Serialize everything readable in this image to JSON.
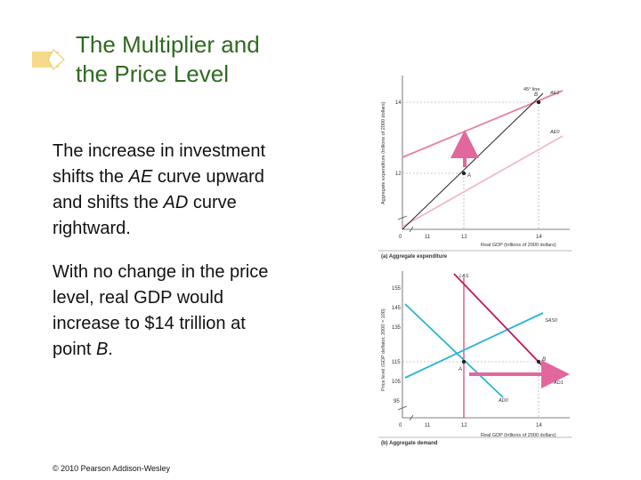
{
  "title": {
    "line1": "The Multiplier and",
    "line2": "the Price Level"
  },
  "body": {
    "p1": [
      {
        "text": "The increase in investment"
      },
      {
        "text": "shifts the "
      },
      {
        "text": "AE"
      },
      {
        "text": " curve upward"
      },
      {
        "text": "and shifts the "
      },
      {
        "text": "AD"
      },
      {
        "text": " curve"
      },
      {
        "text": "rightward."
      }
    ],
    "p2": [
      {
        "text": "With no change in the price"
      },
      {
        "text": "level, real GDP would"
      },
      {
        "text": "increase to $14 trillion at"
      },
      {
        "text": "point "
      },
      {
        "text": "B"
      },
      {
        "text": "."
      }
    ]
  },
  "copyright": "© 2010 Pearson Addison-Wesley",
  "colors": {
    "title": "#2e6b1f",
    "ae_original": "#f2b8c6",
    "ae_new": "#e7829c",
    "arrow": "#e1679d",
    "magenta": "#c2185b",
    "blue": "#2bb3d9",
    "deco": "#f6d98a"
  },
  "top_panel": {
    "ylabel": "Aggregate expenditure (trillions of 2000 dollars)",
    "xlabel": "Real GDP (trillions of 2000 dollars)",
    "caption": "(a) Aggregate expenditure",
    "y_ticks": [
      "14",
      "12",
      "0"
    ],
    "x_ticks": [
      "11",
      "12",
      "14"
    ],
    "line45_label": "45° line",
    "ae1_label": "AE1",
    "ae0_label": "AE0",
    "point_a": "A",
    "point_b": "B"
  },
  "bottom_panel": {
    "ylabel": "Price level (GDP deflator, 2000 = 100)",
    "xlabel": "Real GDP (trillions of 2000 dollars)",
    "caption": "(b) Aggregate demand",
    "y_ticks": [
      "155",
      "145",
      "135",
      "115",
      "105",
      "95"
    ],
    "x_ticks": [
      "0",
      "11",
      "12",
      "14"
    ],
    "las_label": "LAS",
    "sas_label": "SAS0",
    "ad1_label": "AD1",
    "ad0_label": "AD0",
    "point_a": "A",
    "point_b": "B"
  }
}
